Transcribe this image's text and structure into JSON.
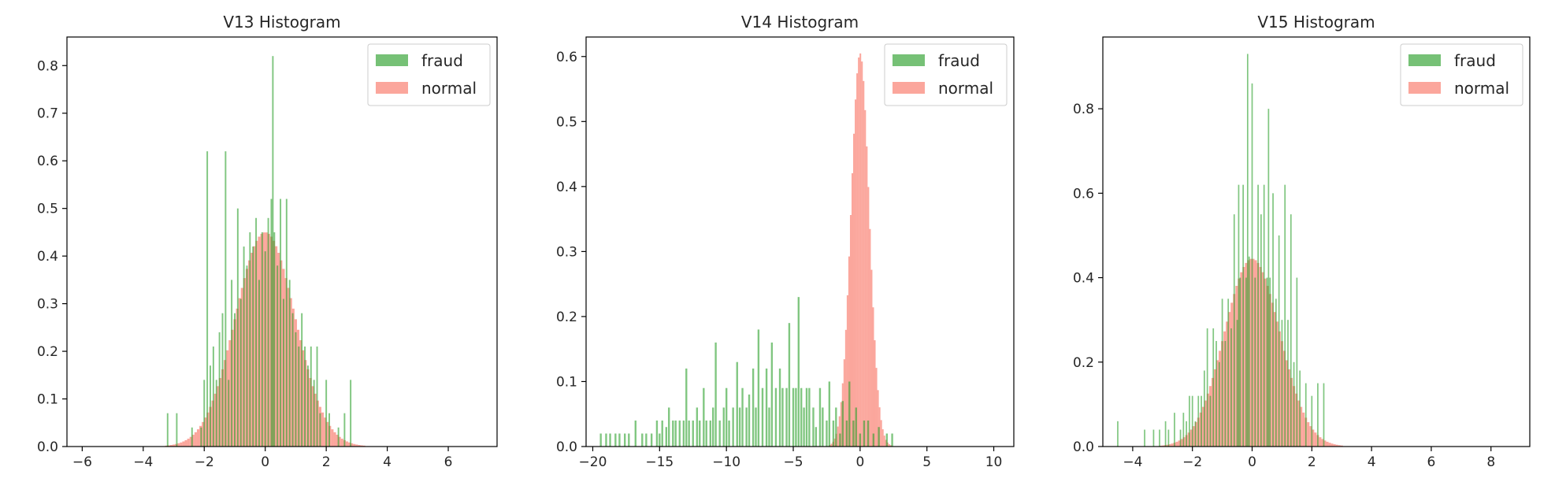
{
  "colors": {
    "fraud": "#2ca02c",
    "normal": "#fa8072"
  },
  "chart_data": [
    {
      "type": "histogram",
      "title": "V13 Histogram",
      "xlim": [
        -6.5,
        7.6
      ],
      "ylim": [
        0,
        0.86
      ],
      "xticks": [
        -6,
        -4,
        -2,
        0,
        2,
        4,
        6
      ],
      "yticks": [
        0.0,
        0.1,
        0.2,
        0.3,
        0.4,
        0.5,
        0.6,
        0.7,
        0.8
      ],
      "legend": {
        "position": "top-right",
        "entries": [
          "fraud",
          "normal"
        ]
      },
      "series": [
        {
          "name": "normal",
          "kind": "gaussian",
          "mean": 0.0,
          "sd": 0.98,
          "peak": 0.45,
          "range": [
            -4.0,
            3.6
          ],
          "bin_width": 0.08
        },
        {
          "name": "fraud",
          "kind": "spikes",
          "bin_width": 0.05,
          "points": [
            [
              -3.2,
              0.07
            ],
            [
              -2.9,
              0.07
            ],
            [
              -2.4,
              0.04
            ],
            [
              -2.1,
              0.04
            ],
            [
              -2.0,
              0.14
            ],
            [
              -1.9,
              0.62
            ],
            [
              -1.8,
              0.17
            ],
            [
              -1.7,
              0.21
            ],
            [
              -1.6,
              0.14
            ],
            [
              -1.5,
              0.24
            ],
            [
              -1.4,
              0.28
            ],
            [
              -1.3,
              0.62
            ],
            [
              -1.2,
              0.14
            ],
            [
              -1.1,
              0.35
            ],
            [
              -1.0,
              0.28
            ],
            [
              -0.9,
              0.5
            ],
            [
              -0.8,
              0.31
            ],
            [
              -0.7,
              0.42
            ],
            [
              -0.6,
              0.38
            ],
            [
              -0.5,
              0.45
            ],
            [
              -0.4,
              0.42
            ],
            [
              -0.3,
              0.48
            ],
            [
              -0.2,
              0.35
            ],
            [
              -0.1,
              0.45
            ],
            [
              0.0,
              0.41
            ],
            [
              0.1,
              0.48
            ],
            [
              0.2,
              0.52
            ],
            [
              0.25,
              0.82
            ],
            [
              0.3,
              0.45
            ],
            [
              0.4,
              0.38
            ],
            [
              0.5,
              0.52
            ],
            [
              0.6,
              0.31
            ],
            [
              0.7,
              0.52
            ],
            [
              0.8,
              0.35
            ],
            [
              0.9,
              0.28
            ],
            [
              1.0,
              0.24
            ],
            [
              1.1,
              0.21
            ],
            [
              1.2,
              0.28
            ],
            [
              1.3,
              0.21
            ],
            [
              1.4,
              0.17
            ],
            [
              1.5,
              0.21
            ],
            [
              1.6,
              0.14
            ],
            [
              1.7,
              0.21
            ],
            [
              1.8,
              0.07
            ],
            [
              2.0,
              0.14
            ],
            [
              2.1,
              0.07
            ],
            [
              2.4,
              0.04
            ],
            [
              2.6,
              0.07
            ],
            [
              2.8,
              0.14
            ]
          ]
        }
      ]
    },
    {
      "type": "histogram",
      "title": "V14 Histogram",
      "xlim": [
        -20.5,
        11.5
      ],
      "ylim": [
        0,
        0.63
      ],
      "xticks": [
        -20,
        -15,
        -10,
        -5,
        0,
        5,
        10
      ],
      "yticks": [
        0.0,
        0.1,
        0.2,
        0.3,
        0.4,
        0.5,
        0.6
      ],
      "legend": {
        "position": "top-right",
        "entries": [
          "fraud",
          "normal"
        ]
      },
      "series": [
        {
          "name": "normal",
          "kind": "gaussian",
          "mean": 0.0,
          "sd": 0.68,
          "peak": 0.605,
          "range": [
            -4.0,
            4.5
          ],
          "bin_width": 0.12
        },
        {
          "name": "fraud",
          "kind": "spikes",
          "bin_width": 0.14,
          "points": [
            [
              -19.4,
              0.02
            ],
            [
              -19.0,
              0.02
            ],
            [
              -18.7,
              0.02
            ],
            [
              -18.3,
              0.02
            ],
            [
              -18.0,
              0.02
            ],
            [
              -17.6,
              0.02
            ],
            [
              -17.3,
              0.02
            ],
            [
              -16.8,
              0.04
            ],
            [
              -16.3,
              0.02
            ],
            [
              -16.0,
              0.02
            ],
            [
              -15.6,
              0.02
            ],
            [
              -15.2,
              0.04
            ],
            [
              -15.0,
              0.02
            ],
            [
              -14.8,
              0.04
            ],
            [
              -14.5,
              0.03
            ],
            [
              -14.3,
              0.06
            ],
            [
              -14.0,
              0.04
            ],
            [
              -13.8,
              0.04
            ],
            [
              -13.5,
              0.04
            ],
            [
              -13.2,
              0.04
            ],
            [
              -13.0,
              0.12
            ],
            [
              -12.8,
              0.04
            ],
            [
              -12.5,
              0.04
            ],
            [
              -12.2,
              0.06
            ],
            [
              -12.0,
              0.04
            ],
            [
              -11.7,
              0.09
            ],
            [
              -11.5,
              0.04
            ],
            [
              -11.2,
              0.04
            ],
            [
              -11.0,
              0.06
            ],
            [
              -10.8,
              0.16
            ],
            [
              -10.5,
              0.04
            ],
            [
              -10.2,
              0.06
            ],
            [
              -10.0,
              0.09
            ],
            [
              -9.8,
              0.04
            ],
            [
              -9.5,
              0.06
            ],
            [
              -9.2,
              0.13
            ],
            [
              -9.0,
              0.06
            ],
            [
              -8.8,
              0.09
            ],
            [
              -8.5,
              0.06
            ],
            [
              -8.3,
              0.08
            ],
            [
              -8.0,
              0.12
            ],
            [
              -7.8,
              0.06
            ],
            [
              -7.6,
              0.18
            ],
            [
              -7.3,
              0.09
            ],
            [
              -7.0,
              0.12
            ],
            [
              -6.8,
              0.06
            ],
            [
              -6.6,
              0.16
            ],
            [
              -6.3,
              0.09
            ],
            [
              -6.0,
              0.12
            ],
            [
              -5.8,
              0.09
            ],
            [
              -5.5,
              0.09
            ],
            [
              -5.3,
              0.19
            ],
            [
              -5.0,
              0.09
            ],
            [
              -4.8,
              0.09
            ],
            [
              -4.6,
              0.23
            ],
            [
              -4.4,
              0.09
            ],
            [
              -4.2,
              0.06
            ],
            [
              -4.0,
              0.09
            ],
            [
              -3.8,
              0.09
            ],
            [
              -3.5,
              0.06
            ],
            [
              -3.3,
              0.03
            ],
            [
              -3.0,
              0.09
            ],
            [
              -2.8,
              0.06
            ],
            [
              -2.5,
              0.04
            ],
            [
              -2.3,
              0.1
            ],
            [
              -2.0,
              0.04
            ],
            [
              -1.8,
              0.06
            ],
            [
              -1.5,
              0.02
            ],
            [
              -1.3,
              0.07
            ],
            [
              -1.0,
              0.04
            ],
            [
              -0.8,
              0.1
            ],
            [
              -0.5,
              0.04
            ],
            [
              -0.3,
              0.06
            ],
            [
              0.0,
              0.02
            ],
            [
              0.3,
              0.04
            ],
            [
              0.6,
              0.04
            ],
            [
              1.0,
              0.02
            ],
            [
              1.4,
              0.03
            ],
            [
              2.0,
              0.02
            ],
            [
              2.4,
              0.02
            ]
          ]
        }
      ]
    },
    {
      "type": "histogram",
      "title": "V15 Histogram",
      "xlim": [
        -5.0,
        9.3
      ],
      "ylim": [
        0,
        0.97
      ],
      "xticks": [
        -4,
        -2,
        0,
        2,
        4,
        6,
        8
      ],
      "yticks": [
        0.0,
        0.2,
        0.4,
        0.6,
        0.8
      ],
      "legend": {
        "position": "top-right",
        "entries": [
          "fraud",
          "normal"
        ]
      },
      "series": [
        {
          "name": "normal",
          "kind": "gaussian",
          "mean": 0.0,
          "sd": 0.93,
          "peak": 0.445,
          "range": [
            -3.6,
            3.0
          ],
          "bin_width": 0.08
        },
        {
          "name": "fraud",
          "kind": "spikes",
          "bin_width": 0.045,
          "points": [
            [
              -4.5,
              0.06
            ],
            [
              -3.6,
              0.04
            ],
            [
              -3.3,
              0.04
            ],
            [
              -3.1,
              0.04
            ],
            [
              -2.9,
              0.06
            ],
            [
              -2.8,
              0.04
            ],
            [
              -2.6,
              0.08
            ],
            [
              -2.4,
              0.04
            ],
            [
              -2.3,
              0.08
            ],
            [
              -2.2,
              0.06
            ],
            [
              -2.1,
              0.12
            ],
            [
              -2.0,
              0.12
            ],
            [
              -1.9,
              0.06
            ],
            [
              -1.8,
              0.12
            ],
            [
              -1.7,
              0.12
            ],
            [
              -1.6,
              0.18
            ],
            [
              -1.5,
              0.28
            ],
            [
              -1.4,
              0.12
            ],
            [
              -1.3,
              0.28
            ],
            [
              -1.2,
              0.25
            ],
            [
              -1.1,
              0.2
            ],
            [
              -1.0,
              0.35
            ],
            [
              -0.9,
              0.25
            ],
            [
              -0.8,
              0.35
            ],
            [
              -0.7,
              0.28
            ],
            [
              -0.6,
              0.55
            ],
            [
              -0.5,
              0.3
            ],
            [
              -0.45,
              0.62
            ],
            [
              -0.4,
              0.4
            ],
            [
              -0.3,
              0.62
            ],
            [
              -0.2,
              0.4
            ],
            [
              -0.15,
              0.93
            ],
            [
              -0.1,
              0.45
            ],
            [
              0.0,
              0.86
            ],
            [
              0.1,
              0.4
            ],
            [
              0.2,
              0.62
            ],
            [
              0.3,
              0.55
            ],
            [
              0.4,
              0.62
            ],
            [
              0.5,
              0.4
            ],
            [
              0.55,
              0.8
            ],
            [
              0.6,
              0.4
            ],
            [
              0.7,
              0.6
            ],
            [
              0.8,
              0.35
            ],
            [
              0.9,
              0.5
            ],
            [
              1.0,
              0.3
            ],
            [
              1.1,
              0.62
            ],
            [
              1.2,
              0.3
            ],
            [
              1.3,
              0.55
            ],
            [
              1.4,
              0.2
            ],
            [
              1.5,
              0.4
            ],
            [
              1.6,
              0.18
            ],
            [
              1.8,
              0.15
            ],
            [
              2.0,
              0.12
            ],
            [
              2.2,
              0.15
            ],
            [
              2.4,
              0.15
            ]
          ]
        }
      ]
    }
  ]
}
